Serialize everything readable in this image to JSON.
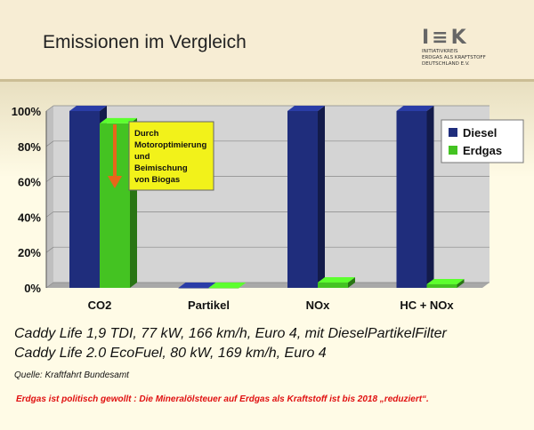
{
  "title": "Emissionen im Vergleich",
  "logo": {
    "mark": "I≡K",
    "lines": [
      "INITIATIVKREIS",
      "ERDGAS ALS KRAFTSTOFF",
      "DEUTSCHLAND E.V."
    ]
  },
  "chart_data": {
    "type": "bar",
    "categories": [
      "CO2",
      "Partikel",
      "NOx",
      "HC + NOx"
    ],
    "series": [
      {
        "name": "Diesel",
        "values": [
          100,
          0,
          100,
          100
        ],
        "color": "#1f2d7c"
      },
      {
        "name": "Erdgas",
        "values": [
          93,
          0,
          3,
          2
        ],
        "color": "#44c322"
      }
    ],
    "yticks": [
      "0%",
      "20%",
      "40%",
      "60%",
      "80%",
      "100%"
    ],
    "ylim": [
      0,
      100
    ],
    "legend_position": "right",
    "annotation": "Durch Motoroptimierung und Beimischung von Biogas"
  },
  "notes": {
    "line1": "Caddy Life 1,9 TDI, 77 kW, 166 km/h, Euro 4, mit DieselPartikelFilter",
    "line2": "Caddy Life 2.0 EcoFuel, 80 kW, 169 km/h, Euro 4",
    "source": "Quelle: Kraftfahrt Bundesamt"
  },
  "footer": "Erdgas ist politisch gewollt : Die Mineralölsteuer auf Erdgas als Kraftstoff ist bis 2018 „reduziert“."
}
